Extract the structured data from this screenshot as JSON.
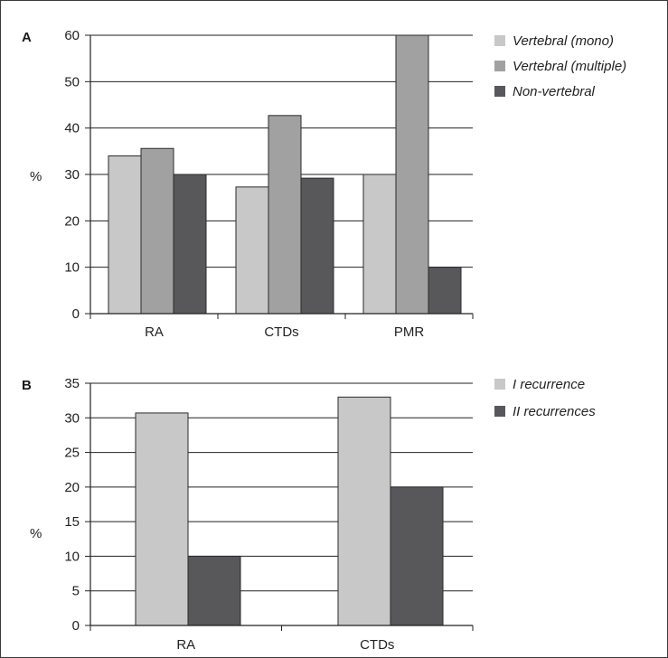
{
  "chart_data": [
    {
      "type": "bar",
      "panel_label": "A",
      "categories": [
        "RA",
        "CTDs",
        "PMR"
      ],
      "series": [
        {
          "name": "Vertebral (mono)",
          "values": [
            34,
            27.3,
            30
          ],
          "color": "#c8c8c8"
        },
        {
          "name": "Vertebral (multiple)",
          "values": [
            35.6,
            42.7,
            60
          ],
          "color": "#a1a1a1"
        },
        {
          "name": "Non-vertebral",
          "values": [
            30,
            29.2,
            10
          ],
          "color": "#58585a"
        }
      ],
      "ylabel": "%",
      "ylim": [
        0,
        60
      ],
      "yticks": [
        0,
        10,
        20,
        30,
        40,
        50,
        60
      ],
      "grid": true,
      "legend_position": "right"
    },
    {
      "type": "bar",
      "panel_label": "B",
      "categories": [
        "RA",
        "CTDs"
      ],
      "series": [
        {
          "name": "I recurrence",
          "values": [
            30.7,
            33
          ],
          "color": "#c8c8c8"
        },
        {
          "name": "II recurrences",
          "values": [
            10,
            20
          ],
          "color": "#58585a"
        }
      ],
      "ylabel": "%",
      "ylim": [
        0,
        35
      ],
      "yticks": [
        0,
        5,
        10,
        15,
        20,
        25,
        30,
        35
      ],
      "grid": true,
      "legend_position": "right"
    }
  ]
}
